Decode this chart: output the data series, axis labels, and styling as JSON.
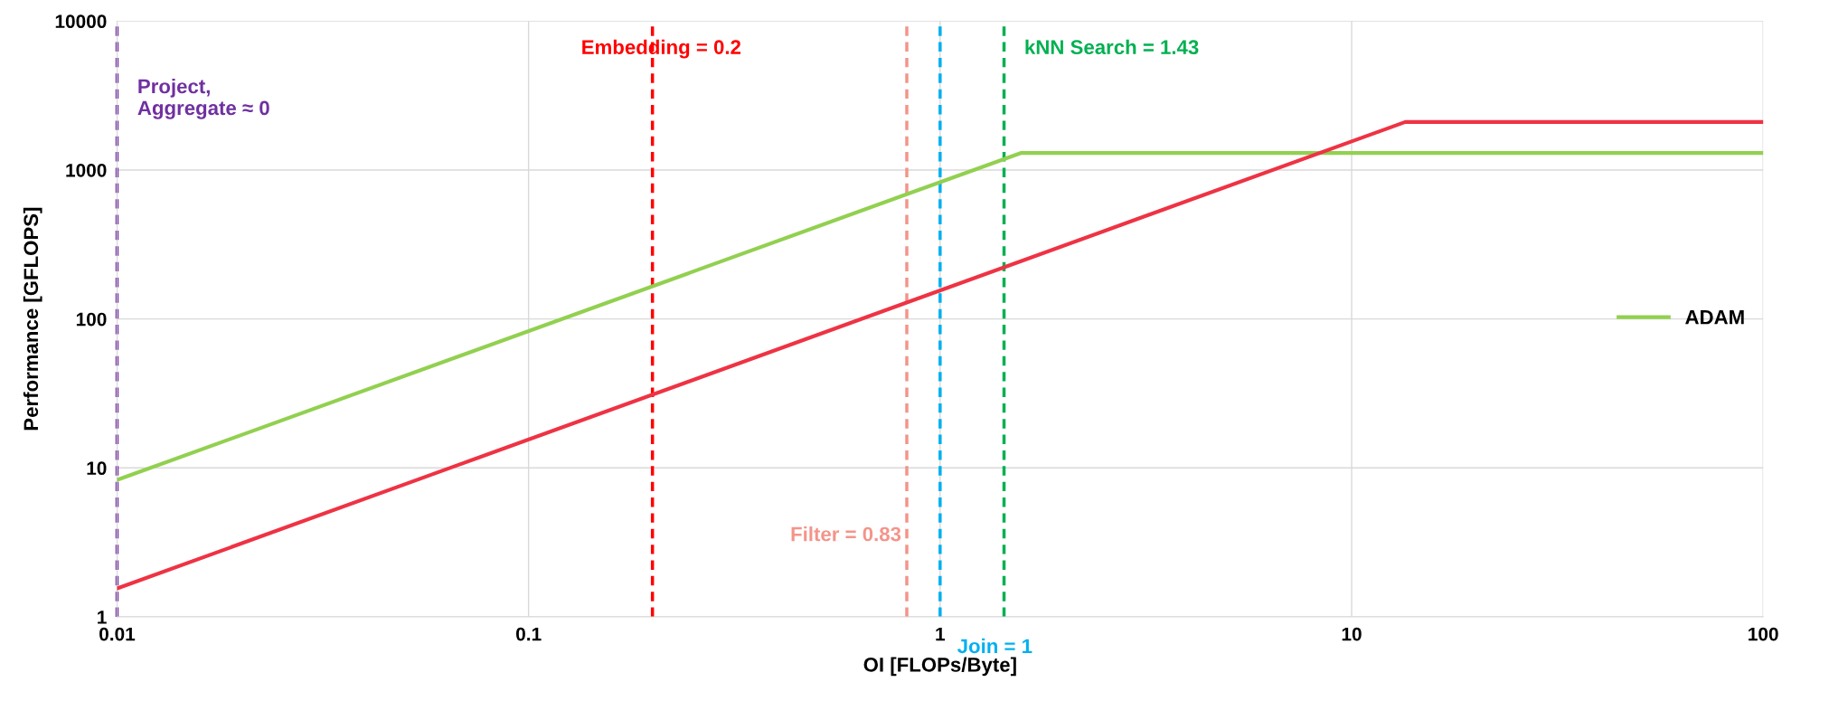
{
  "chart_data": {
    "type": "line",
    "xlabel": "OI [FLOPs/Byte]",
    "ylabel": "Performance [GFLOPS]",
    "log": "xy",
    "xlim": [
      0.01,
      100
    ],
    "xticks": [
      0.01,
      0.1,
      1,
      10,
      100
    ],
    "ylim": [
      1,
      10000
    ],
    "yticks": [
      1,
      10,
      100,
      1000,
      10000
    ],
    "grid": true,
    "legend": "right",
    "marker": "none",
    "line_style": "solid",
    "series": [
      {
        "name": "ADAM",
        "color": "#92d050",
        "x": [
          0.01,
          1.57,
          100
        ],
        "values": [
          8.3,
          1300,
          1300
        ]
      },
      {
        "color": "#ee3344",
        "x": [
          0.01,
          13.5,
          100
        ],
        "values": [
          1.55,
          2100,
          2100
        ]
      }
    ],
    "ref_lines": [
      {
        "axis": "x",
        "value": 0.01,
        "label": "Project,\nAggregate ≈ 0",
        "color": "#7030a0",
        "line_style": "dashed"
      },
      {
        "axis": "x",
        "value": 0.2,
        "label": "Embedding = 0.2",
        "color": "#ff0000",
        "line_style": "dashed"
      },
      {
        "axis": "x",
        "value": 0.83,
        "label": "Filter = 0.83",
        "color": "#f4948a",
        "line_style": "dashed"
      },
      {
        "axis": "x",
        "value": 1,
        "label": "Join = 1",
        "color": "#00b0f0",
        "line_style": "dashed"
      },
      {
        "axis": "x",
        "value": 1.43,
        "label": "kNN Search = 1.43",
        "color": "#00b050",
        "line_style": "dashed"
      }
    ]
  }
}
